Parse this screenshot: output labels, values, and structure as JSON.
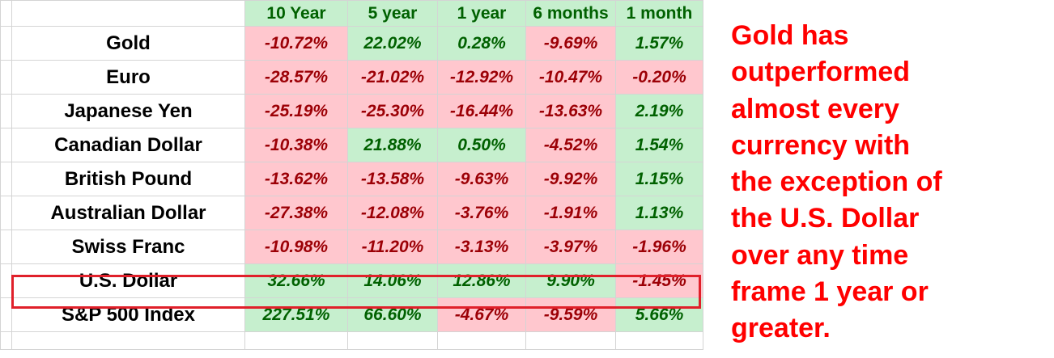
{
  "chart_data": {
    "type": "table",
    "columns": [
      "10 Year",
      "5 year",
      "1 year",
      "6 months",
      "1 month"
    ],
    "rows": [
      {
        "name": "Gold",
        "values": [
          "-10.72%",
          "22.02%",
          "0.28%",
          "-9.69%",
          "1.57%"
        ]
      },
      {
        "name": "Euro",
        "values": [
          "-28.57%",
          "-21.02%",
          "-12.92%",
          "-10.47%",
          "-0.20%"
        ]
      },
      {
        "name": "Japanese Yen",
        "values": [
          "-25.19%",
          "-25.30%",
          "-16.44%",
          "-13.63%",
          "2.19%"
        ]
      },
      {
        "name": "Canadian Dollar",
        "values": [
          "-10.38%",
          "21.88%",
          "0.50%",
          "-4.52%",
          "1.54%"
        ]
      },
      {
        "name": "British Pound",
        "values": [
          "-13.62%",
          "-13.58%",
          "-9.63%",
          "-9.92%",
          "1.15%"
        ]
      },
      {
        "name": "Australian Dollar",
        "values": [
          "-27.38%",
          "-12.08%",
          "-3.76%",
          "-1.91%",
          "1.13%"
        ]
      },
      {
        "name": "Swiss Franc",
        "values": [
          "-10.98%",
          "-11.20%",
          "-3.13%",
          "-3.97%",
          "-1.96%"
        ]
      },
      {
        "name": "U.S. Dollar",
        "values": [
          "32.66%",
          "14.06%",
          "12.86%",
          "9.90%",
          "-1.45%"
        ],
        "highlighted": true
      },
      {
        "name": "S&P 500 Index",
        "values": [
          "227.51%",
          "66.60%",
          "-4.67%",
          "-9.59%",
          "5.66%"
        ]
      }
    ],
    "colors": {
      "positive_fill": "#c6efce",
      "positive_text": "#006100",
      "negative_fill": "#ffc7ce",
      "negative_text": "#9c0006",
      "highlight_border": "#e0202a",
      "annotation_text": "#ff0000"
    }
  },
  "annotation": {
    "lines": [
      "Gold has",
      "outperformed",
      "almost every",
      "currency with",
      "the exception of",
      "the U.S. Dollar",
      "over any time",
      "frame 1 year or",
      "greater."
    ]
  }
}
